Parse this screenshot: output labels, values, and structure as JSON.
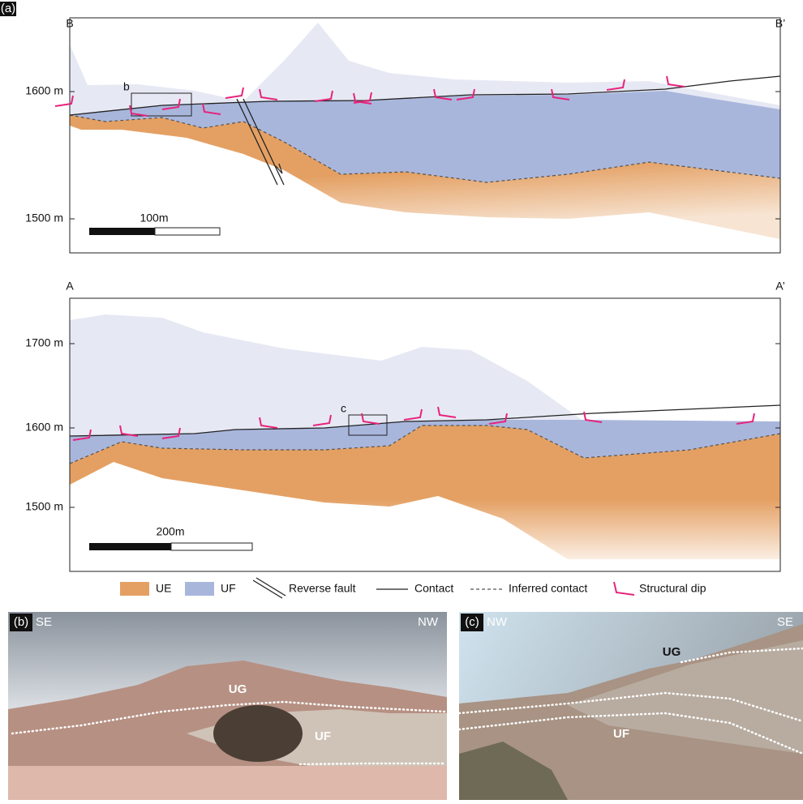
{
  "panel_a": {
    "label": "(a)",
    "section_bb": {
      "start": "B",
      "end": "B’",
      "elevation_labels": [
        "1600 m",
        "1500 m"
      ],
      "inset": "b",
      "scale_bar": "100m"
    },
    "section_aa": {
      "start": "A",
      "end": "A’",
      "elevation_labels": [
        "1700 m",
        "1600 m",
        "1500 m"
      ],
      "inset": "c",
      "scale_bar": "200m"
    }
  },
  "legend": [
    "UE",
    "UF",
    "Reverse fault",
    "Contact",
    "Inferred contact",
    "Structural dip"
  ],
  "panel_b": {
    "label": "(b)",
    "left": "SE",
    "right": "NW",
    "units": [
      "UG",
      "UF"
    ]
  },
  "panel_c": {
    "label": "(c)",
    "left": "NW",
    "right": "SE",
    "units": [
      "UG",
      "UF"
    ]
  }
}
